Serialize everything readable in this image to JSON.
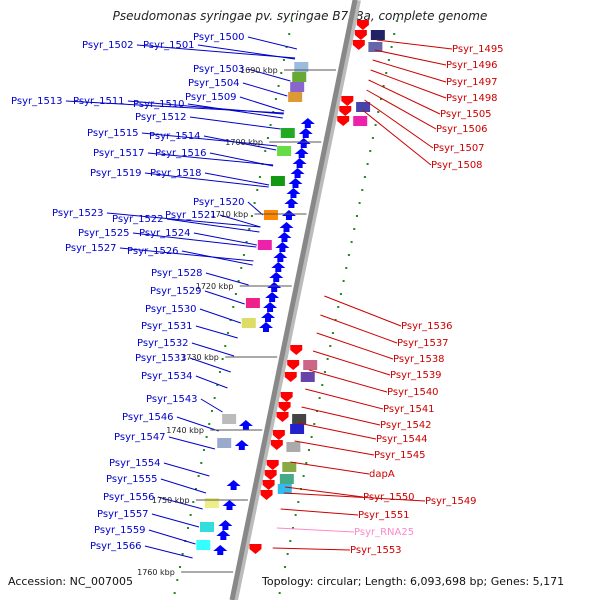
{
  "title": "Pseudomonas syringae pv. syringae B728a, complete genome",
  "footer": {
    "accession": "Accession: NC_007005",
    "topology": "Topology: circular; Length: 6,093,698 bp; Genes: 5,171"
  },
  "colors": {
    "left_label": "#0000cc",
    "right_label": "#cc0000",
    "rna_label": "#ff88cc",
    "backbone": "#888888",
    "forward_arrow": "#0000ff",
    "reverse_arrow": "#ff0000",
    "tick": "#228822"
  },
  "kbp_marks": [
    "1690 kbp",
    "1700 kbp",
    "1710 kbp",
    "1720 kbp",
    "1730 kbp",
    "1740 kbp",
    "1750 kbp",
    "1760 kbp"
  ],
  "left_labels": [
    "Psyr_1500",
    "Psyr_1502",
    "Psyr_1501",
    "Psyr_1503",
    "Psyr_1504",
    "Psyr_1509",
    "Psyr_1513",
    "Psyr_1511",
    "Psyr_1510",
    "Psyr_1512",
    "Psyr_1515",
    "Psyr_1514",
    "Psyr_1517",
    "Psyr_1516",
    "Psyr_1519",
    "Psyr_1518",
    "Psyr_1520",
    "Psyr_1523",
    "Psyr_1521",
    "Psyr_1522",
    "Psyr_1525",
    "Psyr_1524",
    "Psyr_1527",
    "Psyr_1526",
    "Psyr_1528",
    "Psyr_1529",
    "Psyr_1530",
    "Psyr_1531",
    "Psyr_1532",
    "Psyr_1533",
    "Psyr_1534",
    "Psyr_1543",
    "Psyr_1546",
    "Psyr_1547",
    "Psyr_1554",
    "Psyr_1555",
    "Psyr_1556",
    "Psyr_1557",
    "Psyr_1559",
    "Psyr_1566"
  ],
  "right_labels": [
    "Psyr_1495",
    "Psyr_1496",
    "Psyr_1497",
    "Psyr_1498",
    "Psyr_1505",
    "Psyr_1506",
    "Psyr_1507",
    "Psyr_1508",
    "Psyr_1536",
    "Psyr_1537",
    "Psyr_1538",
    "Psyr_1539",
    "Psyr_1540",
    "Psyr_1541",
    "Psyr_1542",
    "Psyr_1544",
    "Psyr_1545",
    "dapA",
    "Psyr_1550",
    "Psyr_1549",
    "Psyr_1551",
    "Psyr_RNA25",
    "Psyr_1553"
  ]
}
